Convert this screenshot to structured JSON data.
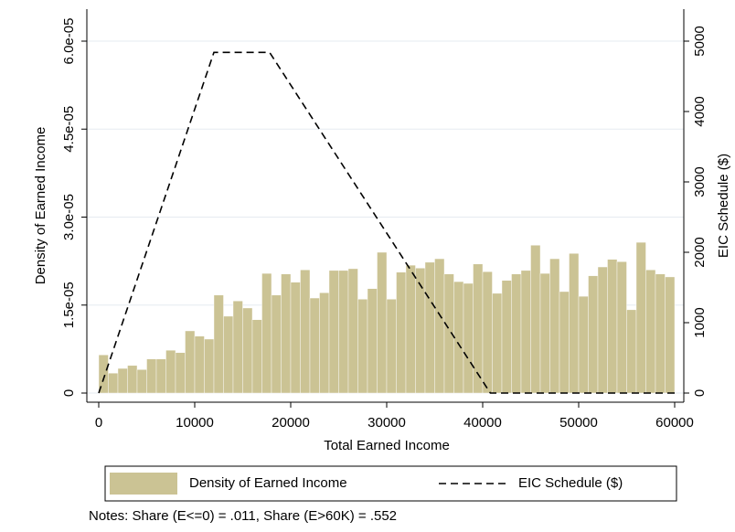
{
  "chart_data": {
    "type": "histogram",
    "xlabel": "Total Earned Income",
    "ylabel": "Density of Earned Income",
    "y2label": "EIC Schedule ($)",
    "note": "Notes: Share (E<=0) = .011, Share (E>60K) = .552",
    "bins": [
      0,
      1000,
      2000,
      3000,
      4000,
      5000,
      6000,
      7000,
      8000,
      9000,
      10000,
      11000,
      12000,
      13000,
      14000,
      15000,
      16000,
      17000,
      18000,
      19000,
      20000,
      21000,
      22000,
      23000,
      24000,
      25000,
      26000,
      27000,
      28000,
      29000,
      30000,
      31000,
      32000,
      33000,
      34000,
      35000,
      36000,
      37000,
      38000,
      39000,
      40000,
      41000,
      42000,
      43000,
      44000,
      45000,
      46000,
      47000,
      48000,
      49000,
      50000,
      51000,
      52000,
      53000,
      54000,
      55000,
      56000,
      57000,
      58000,
      59000,
      60000
    ],
    "series": [
      {
        "name": "Density of Earned Income",
        "color": "#cbc394",
        "values": [
          6.5e-06,
          3.4e-06,
          4.2e-06,
          4.7e-06,
          4e-06,
          5.8e-06,
          5.8e-06,
          7.3e-06,
          6.9e-06,
          1.06e-05,
          9.7e-06,
          9.2e-06,
          1.67e-05,
          1.31e-05,
          1.57e-05,
          1.45e-05,
          1.25e-05,
          2.04e-05,
          1.67e-05,
          2.03e-05,
          1.89e-05,
          2.1e-05,
          1.62e-05,
          1.71e-05,
          2.09e-05,
          2.09e-05,
          2.12e-05,
          1.6e-05,
          1.78e-05,
          2.4e-05,
          1.6e-05,
          2.06e-05,
          2.18e-05,
          2.13e-05,
          2.23e-05,
          2.29e-05,
          2.03e-05,
          1.9e-05,
          1.87e-05,
          2.2e-05,
          2.07e-05,
          1.7e-05,
          1.92e-05,
          2.03e-05,
          2.09e-05,
          2.52e-05,
          2.04e-05,
          2.29e-05,
          1.73e-05,
          2.38e-05,
          1.65e-05,
          2e-05,
          2.15e-05,
          2.28e-05,
          2.24e-05,
          1.42e-05,
          2.57e-05,
          2.1e-05,
          2.03e-05,
          1.98e-05
        ]
      },
      {
        "name": "EIC Schedule ($)",
        "color": "#000000",
        "axis": "y2",
        "dashed": true,
        "x": [
          0,
          12000,
          17800,
          40800,
          60000
        ],
        "values": [
          0,
          4840,
          4840,
          0,
          0
        ]
      }
    ],
    "xlim": [
      0,
      60000
    ],
    "xticks": [
      0,
      10000,
      20000,
      30000,
      40000,
      50000,
      60000
    ],
    "ylim": [
      0,
      6e-05
    ],
    "yticks": [
      0,
      {
        "value": 1.5e-05,
        "label": "1.5e-05"
      },
      {
        "value": 3e-05,
        "label": "3.0e-05"
      },
      {
        "value": 4.5e-05,
        "label": "4.5e-05"
      },
      {
        "value": 6e-05,
        "label": "6.0e-05"
      }
    ],
    "y2lim": [
      0,
      5000
    ],
    "y2ticks": [
      0,
      1000,
      2000,
      3000,
      4000,
      5000
    ],
    "grid": true
  }
}
